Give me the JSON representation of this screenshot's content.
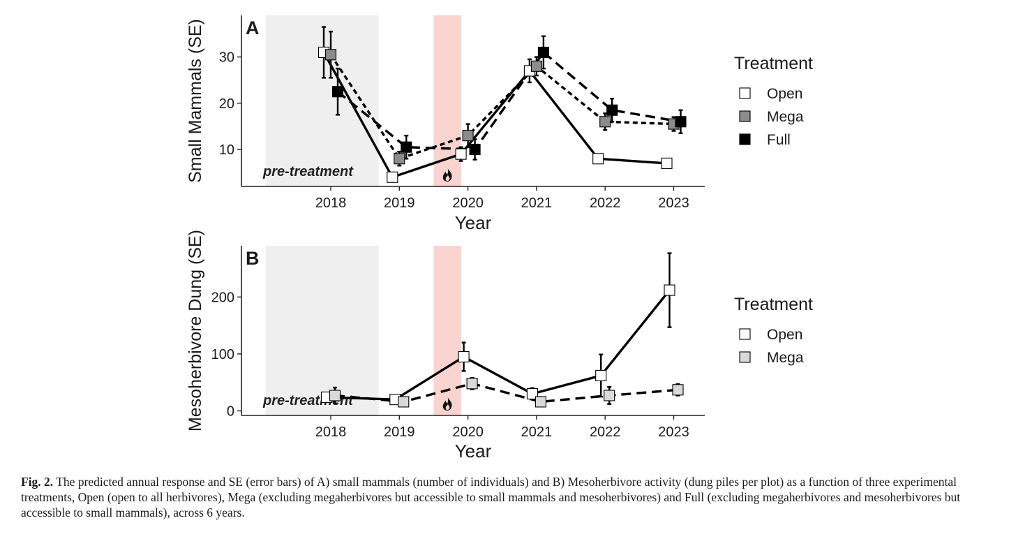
{
  "chart_data": [
    {
      "panel": "A",
      "type": "line",
      "ylabel": "Small Mammals (SE)",
      "xlabel": "Year",
      "categories": [
        "2018",
        "2019",
        "2020",
        "2021",
        "2022",
        "2023"
      ],
      "ylim": [
        2,
        39
      ],
      "yticks": [
        10,
        20,
        30
      ],
      "annotation": "pre-treatment",
      "shaded_regions": [
        {
          "kind": "pre-treatment",
          "from": 2017.05,
          "to": 2018.7,
          "color": "#efefef"
        },
        {
          "kind": "fire",
          "from": 2019.5,
          "to": 2019.9,
          "color": "#f8d3cf"
        }
      ],
      "legend": {
        "title": "Treatment",
        "position": "right"
      },
      "series": [
        {
          "name": "Open",
          "fill": "#ffffff",
          "line": "solid",
          "values": [
            31,
            4,
            9,
            27,
            8,
            7
          ],
          "se": [
            5.5,
            0.8,
            1.5,
            2.5,
            0.8,
            0.8
          ]
        },
        {
          "name": "Mega",
          "fill": "#8c8c8c",
          "line": "dotted",
          "values": [
            30.5,
            8,
            13,
            28,
            16,
            15.5
          ],
          "se": [
            5,
            1.5,
            2.5,
            2.0,
            1.8,
            1.5
          ]
        },
        {
          "name": "Full",
          "fill": "#000000",
          "line": "dashed",
          "values": [
            22.5,
            10.5,
            10,
            31,
            18.5,
            16
          ],
          "se": [
            5,
            2.5,
            2.2,
            3.5,
            2.5,
            2.5
          ]
        }
      ]
    },
    {
      "panel": "B",
      "type": "line",
      "ylabel": "Mesoherbivore Dung (SE)",
      "xlabel": "Year",
      "categories": [
        "2018",
        "2019",
        "2020",
        "2021",
        "2022",
        "2023"
      ],
      "ylim": [
        -8,
        290
      ],
      "yticks": [
        0,
        100,
        200
      ],
      "annotation": "pre-treatment",
      "shaded_regions": [
        {
          "kind": "pre-treatment",
          "from": 2017.05,
          "to": 2018.7,
          "color": "#efefef"
        },
        {
          "kind": "fire",
          "from": 2019.5,
          "to": 2019.9,
          "color": "#f8d3cf"
        }
      ],
      "legend": {
        "title": "Treatment",
        "position": "right"
      },
      "series": [
        {
          "name": "Open",
          "fill": "#ffffff",
          "line": "solid",
          "values": [
            24,
            20,
            95,
            30,
            62,
            212
          ],
          "se": [
            8,
            5,
            25,
            10,
            37,
            65
          ]
        },
        {
          "name": "Mega",
          "fill": "#d9d9d9",
          "line": "dashed",
          "values": [
            27,
            16,
            48,
            16,
            27,
            37
          ],
          "se": [
            14,
            6,
            10,
            5,
            15,
            10
          ]
        }
      ]
    }
  ],
  "caption": {
    "label": "Fig. 2.",
    "text": " The predicted annual response and SE (error bars) of A) small mammals (number of individuals) and B) Mesoherbivore activity (dung piles per plot) as a function of three experimental treatments, Open (open to all herbivores), Mega (excluding megaherbivores but accessible to small mammals and mesoherbivores) and Full (excluding megaherbivores and mesoherbivores but accessible to small mammals), across 6 years."
  },
  "icons": {
    "fire": "fire-icon"
  }
}
